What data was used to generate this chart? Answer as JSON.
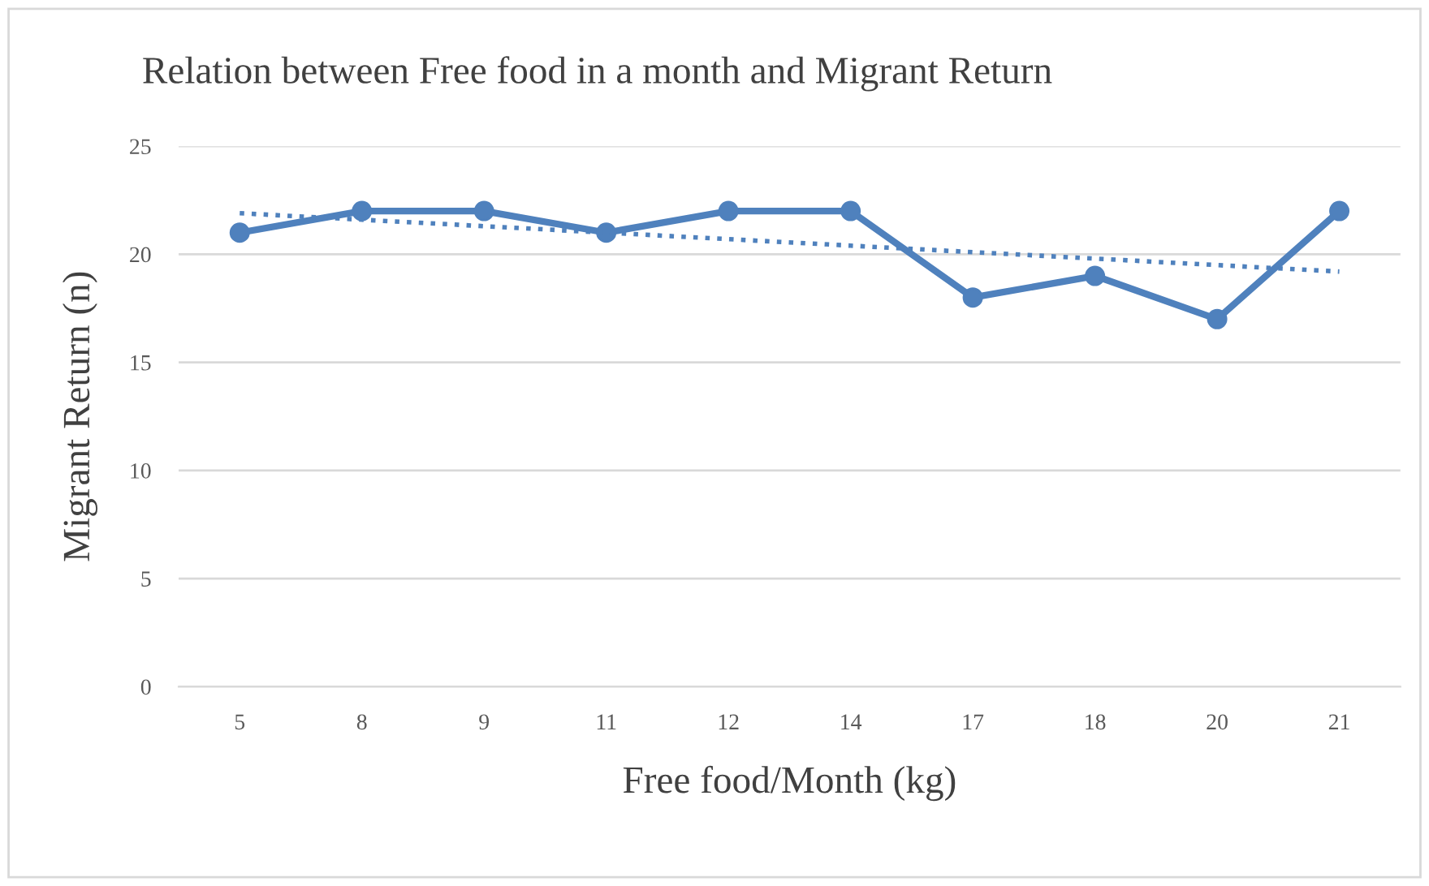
{
  "chart_data": {
    "type": "line",
    "title": "Relation between Free food in a month and Migrant Return",
    "xlabel": "Free food/Month (kg)",
    "ylabel": "Migrant Return (n)",
    "categories": [
      "5",
      "8",
      "9",
      "11",
      "12",
      "14",
      "17",
      "18",
      "20",
      "21"
    ],
    "series": [
      {
        "color": "#4f81bd",
        "marker": "circle",
        "line_style": "solid",
        "values": [
          21,
          22,
          22,
          21,
          22,
          22,
          18,
          19,
          17,
          22
        ]
      },
      {
        "type": "line",
        "color": "#4f81bd",
        "marker": "none",
        "line_style": "dotted",
        "values": [
          21.9,
          21.6,
          21.3,
          21.0,
          20.7,
          20.4,
          20.1,
          19.8,
          19.5,
          19.2
        ]
      }
    ],
    "ylim": [
      0,
      25
    ],
    "yticks": [
      0,
      5,
      10,
      15,
      20,
      25
    ],
    "grid": "y",
    "legend": false
  }
}
